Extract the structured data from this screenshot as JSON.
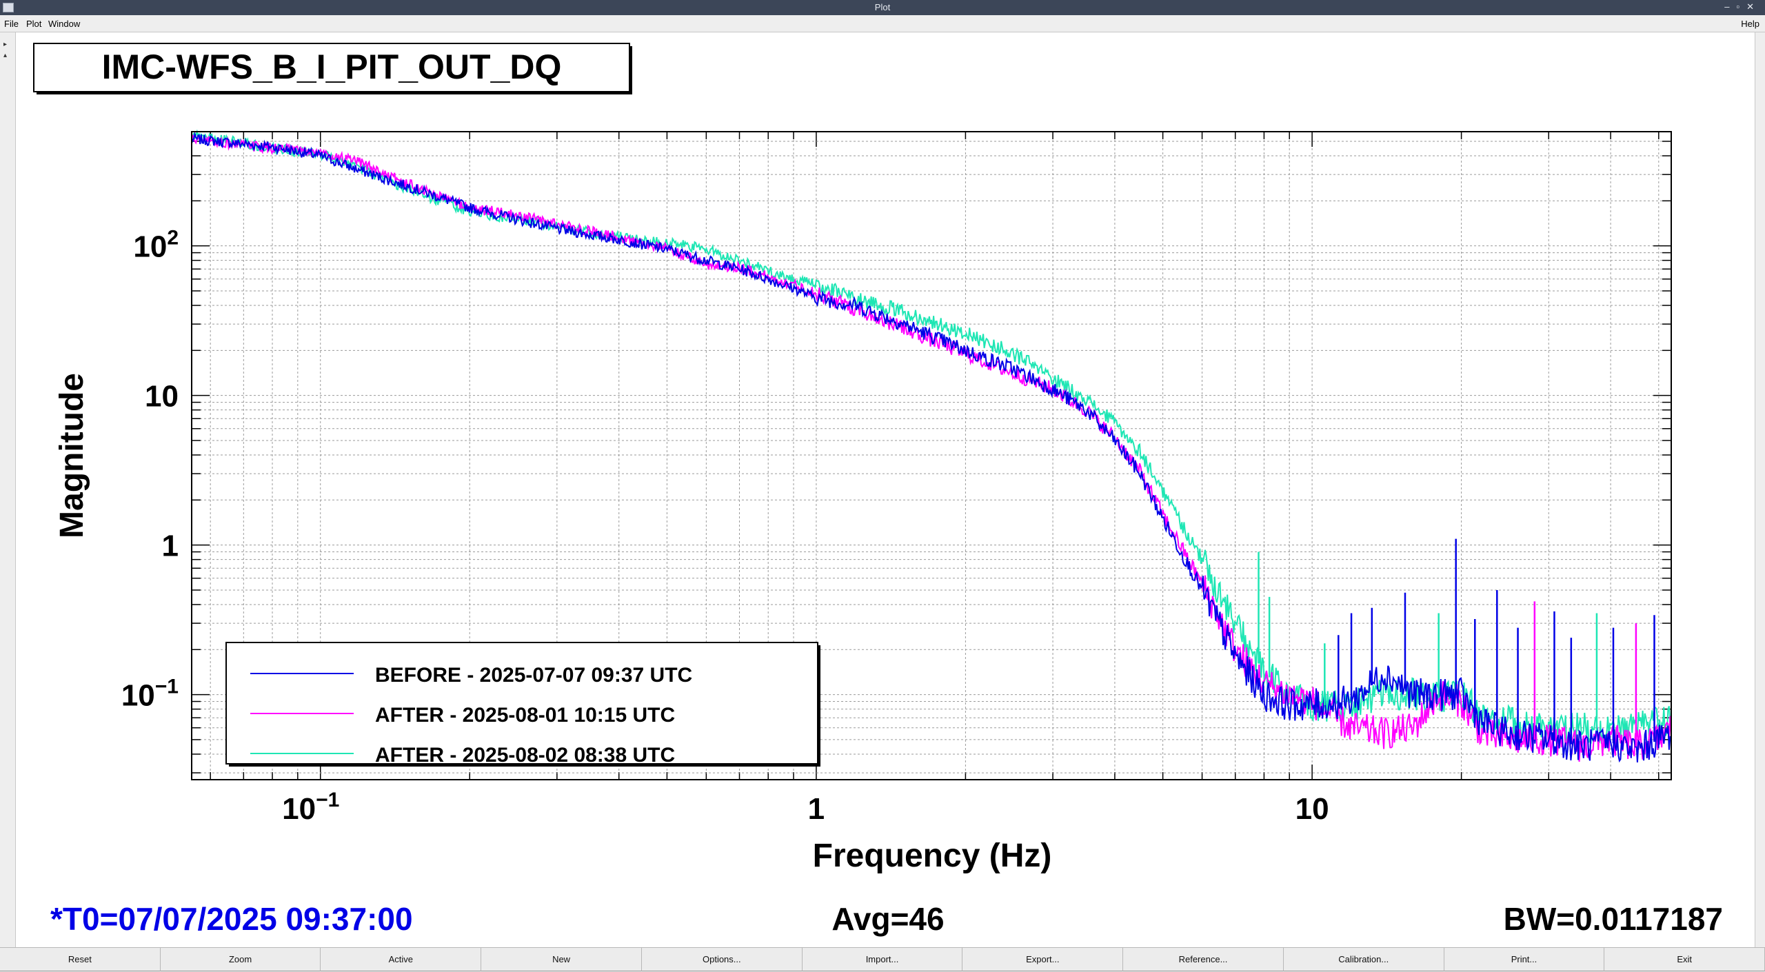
{
  "window": {
    "title": "Plot",
    "controls": [
      "minimize-icon",
      "restore-icon",
      "close-icon"
    ]
  },
  "menu": {
    "file": "File",
    "plot": "Plot",
    "window": "Window",
    "help": "Help"
  },
  "colors": {
    "before": "#0000e6",
    "after1": "#ff00ff",
    "after2": "#1ee6b4"
  },
  "chart_data": {
    "type": "line",
    "title": "IMC-WFS_B_I_PIT_OUT_DQ",
    "xlabel": "Frequency (Hz)",
    "ylabel": "Magnitude",
    "xscale": "log",
    "yscale": "log",
    "xlim": [
      0.055,
      53
    ],
    "ylim": [
      0.027,
      580
    ],
    "grid": true,
    "legend_position": "bottom-left",
    "x_ticks": [
      {
        "value": 0.1,
        "base": "10",
        "exp": "−1"
      },
      {
        "value": 1,
        "base": "1",
        "exp": ""
      },
      {
        "value": 10,
        "base": "10",
        "exp": ""
      }
    ],
    "y_ticks": [
      {
        "value": 0.1,
        "base": "10",
        "exp": "−1"
      },
      {
        "value": 1,
        "base": "1",
        "exp": ""
      },
      {
        "value": 10,
        "base": "10",
        "exp": ""
      },
      {
        "value": 100,
        "base": "10",
        "exp": "2"
      }
    ],
    "series": [
      {
        "name": "BEFORE - 2025-07-07 09:37 UTC",
        "color": "#0000e6",
        "x": [
          0.055,
          0.07,
          0.08,
          0.1,
          0.12,
          0.15,
          0.2,
          0.25,
          0.3,
          0.4,
          0.5,
          0.6,
          0.7,
          0.8,
          0.9,
          1.0,
          1.2,
          1.5,
          2.0,
          2.5,
          3.0,
          3.5,
          4.0,
          4.5,
          5.0,
          6.0,
          7.0,
          8.0,
          9.0,
          10.0,
          12.0,
          14.0,
          16.0,
          18.0,
          20.0,
          22.0,
          25.0,
          30.0,
          35.0,
          40.0,
          45.0,
          50.0,
          53.0
        ],
        "y": [
          520,
          480,
          460,
          400,
          320,
          250,
          180,
          150,
          130,
          110,
          95,
          80,
          70,
          60,
          52,
          45,
          40,
          30,
          20,
          15,
          11,
          8,
          5,
          3,
          1.5,
          0.5,
          0.18,
          0.1,
          0.085,
          0.085,
          0.09,
          0.14,
          0.1,
          0.1,
          0.1,
          0.065,
          0.055,
          0.05,
          0.045,
          0.048,
          0.042,
          0.05,
          0.055
        ]
      },
      {
        "name": "AFTER - 2025-08-01 10:15 UTC",
        "color": "#ff00ff",
        "x": [
          0.055,
          0.07,
          0.08,
          0.1,
          0.12,
          0.15,
          0.2,
          0.25,
          0.3,
          0.4,
          0.5,
          0.6,
          0.7,
          0.8,
          0.9,
          1.0,
          1.2,
          1.5,
          2.0,
          2.5,
          3.0,
          3.5,
          4.0,
          4.5,
          5.0,
          6.0,
          7.0,
          8.0,
          9.0,
          10.0,
          12.0,
          14.0,
          16.0,
          18.0,
          20.0,
          22.0,
          25.0,
          30.0,
          35.0,
          40.0,
          45.0,
          50.0,
          53.0
        ],
        "y": [
          520,
          470,
          450,
          420,
          360,
          260,
          180,
          160,
          140,
          115,
          95,
          75,
          72,
          62,
          55,
          48,
          38,
          28,
          19,
          14,
          11,
          8,
          5.2,
          3.1,
          1.6,
          0.55,
          0.2,
          0.12,
          0.1,
          0.09,
          0.06,
          0.055,
          0.06,
          0.1,
          0.09,
          0.055,
          0.05,
          0.05,
          0.045,
          0.05,
          0.045,
          0.05,
          0.06
        ]
      },
      {
        "name": "AFTER - 2025-08-02 08:38 UTC",
        "color": "#1ee6b4",
        "x": [
          0.055,
          0.07,
          0.08,
          0.1,
          0.12,
          0.15,
          0.2,
          0.25,
          0.3,
          0.4,
          0.5,
          0.6,
          0.7,
          0.8,
          0.9,
          1.0,
          1.2,
          1.5,
          2.0,
          2.5,
          3.0,
          3.5,
          4.0,
          4.5,
          5.0,
          6.0,
          7.0,
          8.0,
          9.0,
          10.0,
          12.0,
          14.0,
          16.0,
          18.0,
          20.0,
          22.0,
          25.0,
          30.0,
          35.0,
          40.0,
          45.0,
          50.0,
          53.0
        ],
        "y": [
          540,
          490,
          450,
          410,
          330,
          240,
          170,
          150,
          135,
          115,
          105,
          95,
          80,
          68,
          60,
          55,
          45,
          36,
          26,
          19,
          13,
          9.5,
          6.5,
          4.2,
          2.3,
          0.8,
          0.3,
          0.14,
          0.1,
          0.085,
          0.085,
          0.1,
          0.1,
          0.095,
          0.1,
          0.07,
          0.065,
          0.06,
          0.06,
          0.055,
          0.06,
          0.065,
          0.07
        ]
      }
    ],
    "spikes": [
      {
        "x": 7.8,
        "y": 0.9,
        "series": 2
      },
      {
        "x": 8.2,
        "y": 0.45,
        "series": 2
      },
      {
        "x": 10.6,
        "y": 0.22,
        "series": 2
      },
      {
        "x": 11.3,
        "y": 0.25,
        "series": 0
      },
      {
        "x": 12.0,
        "y": 0.35,
        "series": 0
      },
      {
        "x": 13.2,
        "y": 0.38,
        "series": 0
      },
      {
        "x": 15.4,
        "y": 0.48,
        "series": 0
      },
      {
        "x": 18.0,
        "y": 0.35,
        "series": 2
      },
      {
        "x": 19.5,
        "y": 1.1,
        "series": 0
      },
      {
        "x": 21.3,
        "y": 0.32,
        "series": 0
      },
      {
        "x": 23.6,
        "y": 0.5,
        "series": 0
      },
      {
        "x": 26.0,
        "y": 0.28,
        "series": 0
      },
      {
        "x": 28.1,
        "y": 0.42,
        "series": 1
      },
      {
        "x": 30.8,
        "y": 0.36,
        "series": 0
      },
      {
        "x": 33.3,
        "y": 0.24,
        "series": 0
      },
      {
        "x": 37.5,
        "y": 0.35,
        "series": 2
      },
      {
        "x": 40.5,
        "y": 0.28,
        "series": 0
      },
      {
        "x": 45.0,
        "y": 0.3,
        "series": 1
      },
      {
        "x": 49.0,
        "y": 0.34,
        "series": 0
      }
    ],
    "annotations": {
      "t0": "*T0=07/07/2025 09:37:00",
      "avg": "Avg=46",
      "bw": "BW=0.0117187"
    }
  },
  "buttons": [
    "Reset",
    "Zoom",
    "Active",
    "New",
    "Options...",
    "Import...",
    "Export...",
    "Reference...",
    "Calibration...",
    "Print...",
    "Exit"
  ]
}
